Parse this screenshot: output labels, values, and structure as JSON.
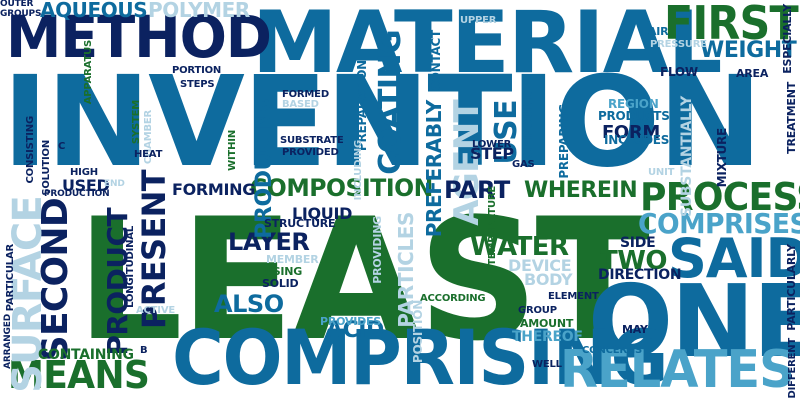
{
  "palette": {
    "navy": "#0b2260",
    "blue": "#0e6b9e",
    "green": "#1a6f2c",
    "lightblue": "#4aa3c9",
    "pale": "#b3d3e3",
    "verypale": "#d3e6ef"
  },
  "words": [
    {
      "text": "LEAST",
      "color": "green"
    },
    {
      "text": "INVENTION",
      "color": "blue"
    },
    {
      "text": "ONE",
      "color": "blue"
    },
    {
      "text": "MATERIAL",
      "color": "blue"
    },
    {
      "text": "COMPRISING",
      "color": "blue"
    },
    {
      "text": "METHOD",
      "color": "navy"
    },
    {
      "text": "RELATES",
      "color": "lightblue"
    },
    {
      "text": "SAID",
      "color": "blue"
    },
    {
      "text": "PROCESS",
      "color": "green"
    },
    {
      "text": "FIRST",
      "color": "green"
    },
    {
      "text": "COMPOSITION",
      "color": "green"
    },
    {
      "text": "COMPRISES",
      "color": "lightblue"
    },
    {
      "text": "MEANS",
      "color": "green"
    },
    {
      "text": "SECOND",
      "color": "navy"
    },
    {
      "text": "SURFACE",
      "color": "pale"
    },
    {
      "text": "PRESENT",
      "color": "navy"
    },
    {
      "text": "WATER",
      "color": "green"
    },
    {
      "text": "PRODUCT",
      "color": "navy"
    },
    {
      "text": "AGENT",
      "color": "pale"
    },
    {
      "text": "COATING",
      "color": "blue"
    },
    {
      "text": "AQUEOUS",
      "color": "blue"
    },
    {
      "text": "POLYMER",
      "color": "pale"
    },
    {
      "text": "WEIGHT",
      "color": "blue"
    },
    {
      "text": "WHEREIN",
      "color": "green"
    },
    {
      "text": "PART",
      "color": "navy"
    },
    {
      "text": "TWO",
      "color": "green"
    },
    {
      "text": "LAYER",
      "color": "navy"
    },
    {
      "text": "ALSO",
      "color": "blue"
    },
    {
      "text": "USE",
      "color": "blue"
    },
    {
      "text": "FORMING",
      "color": "navy"
    },
    {
      "text": "PRODUCING",
      "color": "blue"
    },
    {
      "text": "PREFERABLY",
      "color": "blue"
    },
    {
      "text": "FORM",
      "color": "navy"
    },
    {
      "text": "ACID",
      "color": "blue"
    },
    {
      "text": "DEVICE",
      "color": "pale"
    },
    {
      "text": "LIQUID",
      "color": "navy"
    },
    {
      "text": "CONTAINING",
      "color": "green"
    },
    {
      "text": "PARTICLES",
      "color": "pale"
    },
    {
      "text": "STEP",
      "color": "navy"
    },
    {
      "text": "BODY",
      "color": "pale"
    },
    {
      "text": "THEREOF",
      "color": "lightblue"
    },
    {
      "text": "USED",
      "color": "navy"
    },
    {
      "text": "SIDE",
      "color": "navy"
    },
    {
      "text": "DIRECTION",
      "color": "navy"
    },
    {
      "text": "PREPARATION",
      "color": "blue"
    },
    {
      "text": "SUBSTANTIALLY",
      "color": "pale"
    },
    {
      "text": "REGION",
      "color": "lightblue"
    },
    {
      "text": "PRODUCTS",
      "color": "blue"
    },
    {
      "text": "INCLUDES",
      "color": "blue"
    },
    {
      "text": "TREATMENT",
      "color": "navy"
    },
    {
      "text": "FLOW",
      "color": "navy"
    },
    {
      "text": "AREA",
      "color": "navy"
    },
    {
      "text": "ESPECIALLY",
      "color": "navy"
    },
    {
      "text": "AIR",
      "color": "blue"
    },
    {
      "text": "UPPER",
      "color": "pale"
    },
    {
      "text": "CONTACT",
      "color": "blue"
    },
    {
      "text": "COMPOUND",
      "color": "blue"
    },
    {
      "text": "PREPARING",
      "color": "blue"
    },
    {
      "text": "LOWER",
      "color": "navy"
    },
    {
      "text": "GAS",
      "color": "navy"
    },
    {
      "text": "STRUCTURE",
      "color": "navy"
    },
    {
      "text": "MEMBER",
      "color": "pale"
    },
    {
      "text": "USING",
      "color": "green"
    },
    {
      "text": "SOLID",
      "color": "navy"
    },
    {
      "text": "ACCORDING",
      "color": "green"
    },
    {
      "text": "PROVIDES",
      "color": "lightblue"
    },
    {
      "text": "AMOUNT",
      "color": "green"
    },
    {
      "text": "ELEMENT",
      "color": "navy"
    },
    {
      "text": "GROUP",
      "color": "navy"
    },
    {
      "text": "MAY",
      "color": "navy"
    },
    {
      "text": "CONCERNS",
      "color": "blue"
    },
    {
      "text": "WELL",
      "color": "navy"
    },
    {
      "text": "PARTICULARLY",
      "color": "navy"
    },
    {
      "text": "DIFFERENT",
      "color": "navy"
    },
    {
      "text": "MIXTURE",
      "color": "navy"
    },
    {
      "text": "APPARATUS",
      "color": "green"
    },
    {
      "text": "CONSISTING",
      "color": "navy"
    },
    {
      "text": "SOLUTION",
      "color": "navy"
    },
    {
      "text": "HIGH",
      "color": "navy"
    },
    {
      "text": "PRODUCTION",
      "color": "navy"
    },
    {
      "text": "END",
      "color": "pale"
    },
    {
      "text": "PARTICULAR",
      "color": "navy"
    },
    {
      "text": "ARRANGED",
      "color": "navy"
    },
    {
      "text": "OUTER",
      "color": "navy"
    },
    {
      "text": "GROUPS",
      "color": "navy"
    },
    {
      "text": "PORTION",
      "color": "navy"
    },
    {
      "text": "STEPS",
      "color": "navy"
    },
    {
      "text": "FORMED",
      "color": "navy"
    },
    {
      "text": "BASED",
      "color": "pale"
    },
    {
      "text": "SYSTEM",
      "color": "green"
    },
    {
      "text": "CHAMBER",
      "color": "pale"
    },
    {
      "text": "HEAT",
      "color": "navy"
    },
    {
      "text": "WITHIN",
      "color": "green"
    },
    {
      "text": "SUBSTRATE",
      "color": "navy"
    },
    {
      "text": "PROVIDED",
      "color": "navy"
    },
    {
      "text": "INCLUDING",
      "color": "pale"
    },
    {
      "text": "TEMPERATURE",
      "color": "green"
    },
    {
      "text": "PROVIDING",
      "color": "pale"
    },
    {
      "text": "LONGITUDINAL",
      "color": "navy"
    },
    {
      "text": "ACTIVE",
      "color": "pale"
    },
    {
      "text": "POSITION",
      "color": "pale"
    },
    {
      "text": "PRESSURE",
      "color": "pale"
    },
    {
      "text": "UNIT",
      "color": "pale"
    },
    {
      "text": "B",
      "color": "navy"
    },
    {
      "text": "C",
      "color": "navy"
    }
  ]
}
